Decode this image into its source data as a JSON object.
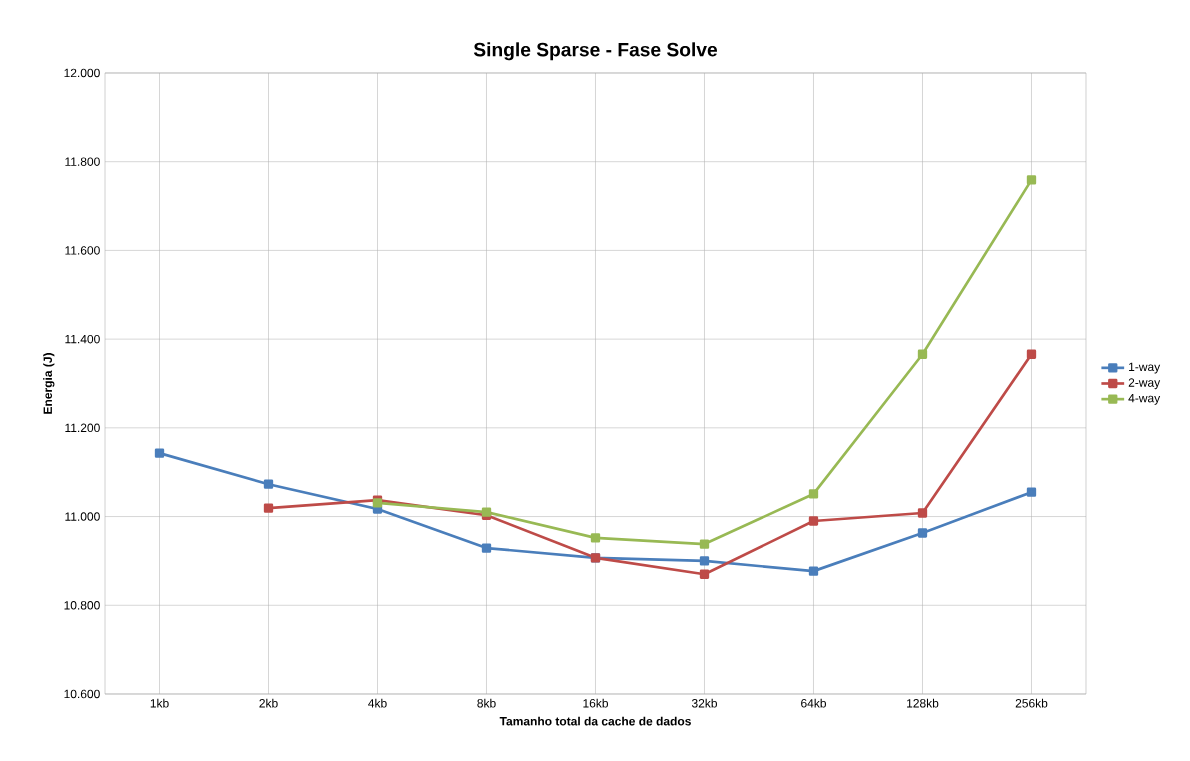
{
  "chart_data": {
    "type": "line",
    "title": "Single Sparse - Fase Solve",
    "xlabel": "Tamanho total da cache de dados",
    "ylabel": "Energia (J)",
    "categories": [
      "1kb",
      "2kb",
      "4kb",
      "8kb",
      "16kb",
      "32kb",
      "64kb",
      "128kb",
      "256kb"
    ],
    "series": [
      {
        "name": "1-way",
        "color": "#4a7ebb",
        "values": [
          11.143,
          11.073,
          11.017,
          10.929,
          10.907,
          10.9,
          10.877,
          10.963,
          11.055
        ]
      },
      {
        "name": "2-way",
        "color": "#be4b48",
        "values": [
          null,
          11.019,
          11.037,
          11.003,
          10.907,
          10.87,
          10.99,
          11.008,
          11.366
        ]
      },
      {
        "name": "4-way",
        "color": "#98b954",
        "values": [
          null,
          null,
          11.031,
          11.01,
          10.952,
          10.938,
          11.051,
          11.366,
          11.759
        ]
      }
    ],
    "ylim": [
      10.6,
      12.0
    ],
    "yticks": [
      {
        "value": 10.6,
        "label": "10.600"
      },
      {
        "value": 10.8,
        "label": "10.800"
      },
      {
        "value": 11.0,
        "label": "11.000"
      },
      {
        "value": 11.2,
        "label": "11.200"
      },
      {
        "value": 11.4,
        "label": "11.400"
      },
      {
        "value": 11.6,
        "label": "11.600"
      },
      {
        "value": 11.8,
        "label": "11.800"
      },
      {
        "value": 12.0,
        "label": "12.000"
      }
    ],
    "grid": true,
    "legend": "right",
    "marker": "square",
    "line_style": "solid"
  }
}
